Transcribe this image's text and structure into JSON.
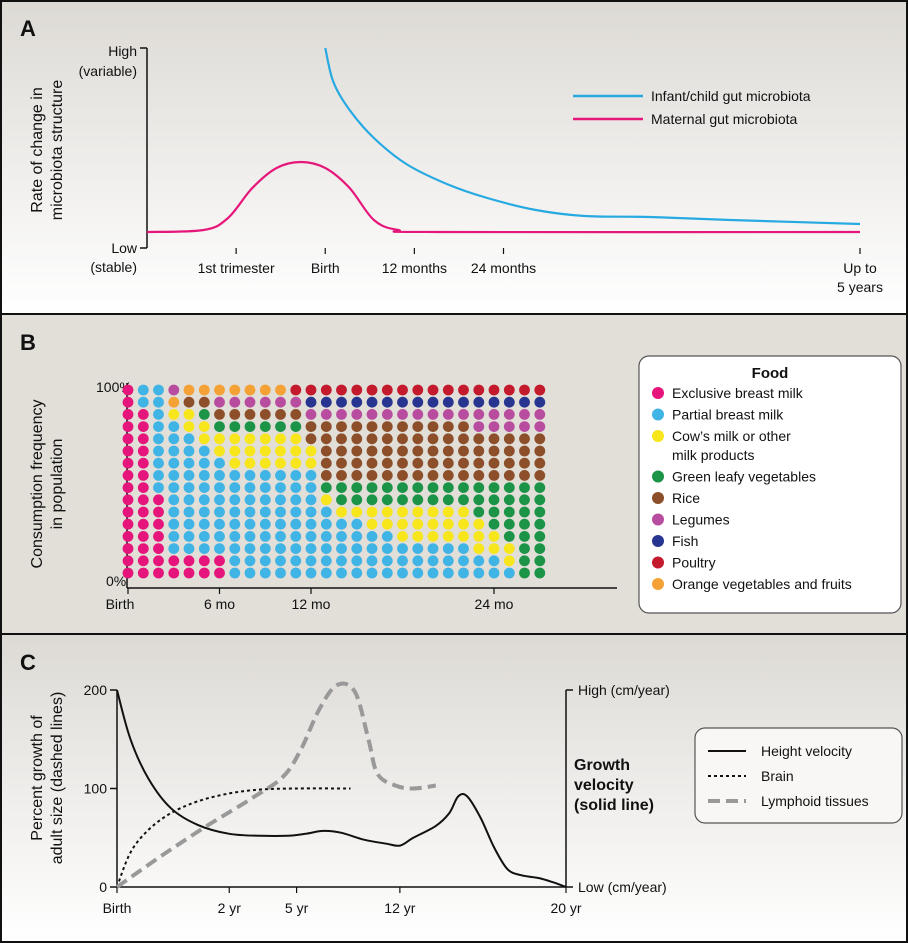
{
  "panels": {
    "a": "A",
    "b": "B",
    "c": "C"
  },
  "chart_data": [
    {
      "panel": "A",
      "type": "line",
      "ylabel": [
        "Rate of change in",
        "microbiota structure"
      ],
      "yticks": {
        "high": [
          "High",
          "(variable)"
        ],
        "low": [
          "Low",
          "(stable)"
        ]
      },
      "xticks": [
        {
          "t": "1st trimester",
          "x": -0.55
        },
        {
          "t": "Birth",
          "x": 0
        },
        {
          "t": "12 months",
          "x": 0.55
        },
        {
          "t": "24 months",
          "x": 1.1
        },
        {
          "t": "Up to",
          "t2": "5 years",
          "x": 3.3
        }
      ],
      "xlim": [
        -1.1,
        3.3
      ],
      "ylim": [
        0,
        1
      ],
      "series": [
        {
          "name": "Infant/child gut microbiota",
          "color": "#27a9e1",
          "points": [
            [
              0,
              1.0
            ],
            [
              0.05,
              0.83
            ],
            [
              0.15,
              0.69
            ],
            [
              0.3,
              0.55
            ],
            [
              0.5,
              0.42
            ],
            [
              0.75,
              0.32
            ],
            [
              1.0,
              0.25
            ],
            [
              1.3,
              0.19
            ],
            [
              1.6,
              0.16
            ],
            [
              2.0,
              0.155
            ],
            [
              2.5,
              0.14
            ],
            [
              3.3,
              0.12
            ]
          ]
        },
        {
          "name": "Maternal gut microbiota",
          "color": "#e6177a",
          "points": [
            [
              -1.1,
              0.08
            ],
            [
              -0.75,
              0.09
            ],
            [
              -0.6,
              0.15
            ],
            [
              -0.45,
              0.3
            ],
            [
              -0.3,
              0.4
            ],
            [
              -0.15,
              0.43
            ],
            [
              0,
              0.4
            ],
            [
              0.15,
              0.3
            ],
            [
              0.3,
              0.14
            ],
            [
              0.45,
              0.09
            ],
            [
              0.7,
              0.08
            ],
            [
              3.3,
              0.08
            ]
          ]
        }
      ]
    },
    {
      "panel": "B",
      "type": "heatmap",
      "ylabel": [
        "Consumption frequency",
        "in population"
      ],
      "yticks": [
        "100%",
        "0%"
      ],
      "xticks": [
        {
          "t": "Birth",
          "c": 0
        },
        {
          "t": "6 mo",
          "c": 6
        },
        {
          "t": "12 mo",
          "c": 12
        },
        {
          "t": "24 mo",
          "c": 24
        }
      ],
      "columns": 28,
      "rows": 16,
      "legend_title": "Food",
      "foods": [
        {
          "name": "Exclusive breast milk",
          "color": "#e5157b"
        },
        {
          "name": "Partial breast milk",
          "color": "#40b4e5"
        },
        {
          "name": "Cow’s milk or other",
          "name2": "milk products",
          "color": "#f6e61b"
        },
        {
          "name": "Green leafy vegetables",
          "color": "#1b9447"
        },
        {
          "name": "Rice",
          "color": "#8c4f2a"
        },
        {
          "name": "Legumes",
          "color": "#b84da0"
        },
        {
          "name": "Fish",
          "color": "#273590"
        },
        {
          "name": "Poultry",
          "color": "#c41a2d"
        },
        {
          "name": "Orange vegetables and fruits",
          "color": "#f4a235"
        }
      ],
      "cells_by_column_bottom_to_top": [
        [
          [
            0,
            16
          ]
        ],
        [
          [
            0,
            14
          ],
          [
            1,
            2
          ]
        ],
        [
          [
            0,
            7
          ],
          [
            1,
            9
          ]
        ],
        [
          [
            0,
            2
          ],
          [
            1,
            11
          ],
          [
            2,
            1
          ],
          [
            8,
            1
          ],
          [
            5,
            1
          ]
        ],
        [
          [
            0,
            2
          ],
          [
            1,
            10
          ],
          [
            2,
            2
          ],
          [
            4,
            1
          ],
          [
            8,
            1
          ]
        ],
        [
          [
            0,
            2
          ],
          [
            1,
            9
          ],
          [
            2,
            2
          ],
          [
            3,
            1
          ],
          [
            4,
            1
          ],
          [
            8,
            1
          ]
        ],
        [
          [
            0,
            2
          ],
          [
            1,
            8
          ],
          [
            2,
            2
          ],
          [
            3,
            1
          ],
          [
            4,
            1
          ],
          [
            5,
            1
          ],
          [
            8,
            1
          ]
        ],
        [
          [
            1,
            9
          ],
          [
            2,
            3
          ],
          [
            3,
            1
          ],
          [
            4,
            1
          ],
          [
            5,
            1
          ],
          [
            8,
            1
          ]
        ],
        [
          [
            1,
            9
          ],
          [
            2,
            3
          ],
          [
            3,
            1
          ],
          [
            4,
            1
          ],
          [
            5,
            1
          ],
          [
            8,
            1
          ]
        ],
        [
          [
            1,
            9
          ],
          [
            2,
            3
          ],
          [
            3,
            1
          ],
          [
            4,
            1
          ],
          [
            5,
            1
          ],
          [
            8,
            1
          ]
        ],
        [
          [
            1,
            9
          ],
          [
            2,
            3
          ],
          [
            3,
            1
          ],
          [
            4,
            1
          ],
          [
            5,
            1
          ],
          [
            8,
            1
          ]
        ],
        [
          [
            1,
            9
          ],
          [
            2,
            3
          ],
          [
            3,
            1
          ],
          [
            4,
            1
          ],
          [
            5,
            1
          ],
          [
            7,
            1
          ]
        ],
        [
          [
            1,
            9
          ],
          [
            2,
            2
          ],
          [
            4,
            2
          ],
          [
            5,
            1
          ],
          [
            6,
            1
          ],
          [
            7,
            1
          ]
        ],
        [
          [
            1,
            6
          ],
          [
            2,
            1
          ],
          [
            3,
            1
          ],
          [
            4,
            5
          ],
          [
            5,
            1
          ],
          [
            6,
            1
          ],
          [
            7,
            1
          ]
        ],
        [
          [
            1,
            5
          ],
          [
            2,
            1
          ],
          [
            3,
            2
          ],
          [
            4,
            5
          ],
          [
            5,
            1
          ],
          [
            6,
            1
          ],
          [
            7,
            1
          ]
        ],
        [
          [
            1,
            5
          ],
          [
            2,
            1
          ],
          [
            3,
            2
          ],
          [
            4,
            5
          ],
          [
            5,
            1
          ],
          [
            6,
            1
          ],
          [
            7,
            1
          ]
        ],
        [
          [
            1,
            4
          ],
          [
            2,
            2
          ],
          [
            3,
            2
          ],
          [
            4,
            5
          ],
          [
            5,
            1
          ],
          [
            6,
            1
          ],
          [
            7,
            1
          ]
        ],
        [
          [
            1,
            4
          ],
          [
            2,
            2
          ],
          [
            3,
            2
          ],
          [
            4,
            5
          ],
          [
            5,
            1
          ],
          [
            6,
            1
          ],
          [
            7,
            1
          ]
        ],
        [
          [
            1,
            3
          ],
          [
            2,
            3
          ],
          [
            3,
            2
          ],
          [
            4,
            5
          ],
          [
            5,
            1
          ],
          [
            6,
            1
          ],
          [
            7,
            1
          ]
        ],
        [
          [
            1,
            3
          ],
          [
            2,
            3
          ],
          [
            3,
            2
          ],
          [
            4,
            5
          ],
          [
            5,
            1
          ],
          [
            6,
            1
          ],
          [
            7,
            1
          ]
        ],
        [
          [
            1,
            3
          ],
          [
            2,
            3
          ],
          [
            3,
            2
          ],
          [
            4,
            5
          ],
          [
            5,
            1
          ],
          [
            6,
            1
          ],
          [
            7,
            1
          ]
        ],
        [
          [
            1,
            3
          ],
          [
            2,
            3
          ],
          [
            3,
            2
          ],
          [
            4,
            5
          ],
          [
            5,
            1
          ],
          [
            6,
            1
          ],
          [
            7,
            1
          ]
        ],
        [
          [
            1,
            3
          ],
          [
            2,
            3
          ],
          [
            3,
            2
          ],
          [
            4,
            5
          ],
          [
            5,
            1
          ],
          [
            6,
            1
          ],
          [
            7,
            1
          ]
        ],
        [
          [
            1,
            2
          ],
          [
            2,
            3
          ],
          [
            3,
            3
          ],
          [
            4,
            4
          ],
          [
            5,
            2
          ],
          [
            6,
            1
          ],
          [
            7,
            1
          ]
        ],
        [
          [
            1,
            2
          ],
          [
            2,
            2
          ],
          [
            3,
            4
          ],
          [
            4,
            4
          ],
          [
            5,
            2
          ],
          [
            6,
            1
          ],
          [
            7,
            1
          ]
        ],
        [
          [
            1,
            1
          ],
          [
            2,
            2
          ],
          [
            3,
            5
          ],
          [
            4,
            4
          ],
          [
            5,
            2
          ],
          [
            6,
            1
          ],
          [
            7,
            1
          ]
        ],
        [
          [
            3,
            8
          ],
          [
            4,
            4
          ],
          [
            5,
            2
          ],
          [
            6,
            1
          ],
          [
            7,
            1
          ]
        ],
        [
          [
            3,
            8
          ],
          [
            4,
            4
          ],
          [
            5,
            2
          ],
          [
            6,
            1
          ],
          [
            7,
            1
          ]
        ]
      ]
    },
    {
      "panel": "C",
      "type": "line",
      "ylabel": [
        "Percent growth of",
        "adult size (dashed lines)"
      ],
      "yticks": [
        0,
        100,
        200
      ],
      "ylim": [
        0,
        200
      ],
      "y2label": [
        "Growth",
        "velocity",
        "(solid line)"
      ],
      "y2ticks": {
        "high": "High (cm/year)",
        "low": "Low (cm/year)"
      },
      "xticks": [
        {
          "t": "Birth",
          "x": 0
        },
        {
          "t": "2 yr",
          "x": 0.25
        },
        {
          "t": "5 yr",
          "x": 0.4
        },
        {
          "t": "12 yr",
          "x": 0.63
        },
        {
          "t": "20 yr",
          "x": 1
        }
      ],
      "xlim": [
        0,
        1
      ],
      "series": [
        {
          "name": "Height velocity",
          "style": "solid",
          "points": [
            [
              0,
              200
            ],
            [
              0.03,
              150
            ],
            [
              0.07,
              110
            ],
            [
              0.12,
              80
            ],
            [
              0.18,
              63
            ],
            [
              0.25,
              54
            ],
            [
              0.32,
              52
            ],
            [
              0.38,
              52
            ],
            [
              0.42,
              54
            ],
            [
              0.46,
              57
            ],
            [
              0.5,
              55
            ],
            [
              0.55,
              48
            ],
            [
              0.6,
              44
            ],
            [
              0.63,
              42
            ],
            [
              0.66,
              50
            ],
            [
              0.71,
              62
            ],
            [
              0.74,
              75
            ],
            [
              0.76,
              92
            ],
            [
              0.78,
              92
            ],
            [
              0.81,
              70
            ],
            [
              0.84,
              40
            ],
            [
              0.87,
              18
            ],
            [
              0.9,
              12
            ],
            [
              0.94,
              9
            ],
            [
              0.97,
              5
            ],
            [
              1,
              0
            ]
          ]
        },
        {
          "name": "Brain",
          "style": "dotted",
          "points": [
            [
              0,
              0
            ],
            [
              0.03,
              35
            ],
            [
              0.07,
              58
            ],
            [
              0.12,
              75
            ],
            [
              0.18,
              87
            ],
            [
              0.25,
              95
            ],
            [
              0.32,
              99
            ],
            [
              0.4,
              100
            ],
            [
              0.52,
              100
            ]
          ]
        },
        {
          "name": "Lymphoid tissues",
          "style": "dashed",
          "points": [
            [
              0,
              0
            ],
            [
              0.1,
              32
            ],
            [
              0.2,
              62
            ],
            [
              0.3,
              90
            ],
            [
              0.37,
              112
            ],
            [
              0.41,
              140
            ],
            [
              0.45,
              180
            ],
            [
              0.49,
              205
            ],
            [
              0.53,
              198
            ],
            [
              0.56,
              150
            ],
            [
              0.58,
              115
            ],
            [
              0.62,
              103
            ],
            [
              0.66,
              100
            ],
            [
              0.71,
              103
            ]
          ]
        }
      ]
    }
  ]
}
